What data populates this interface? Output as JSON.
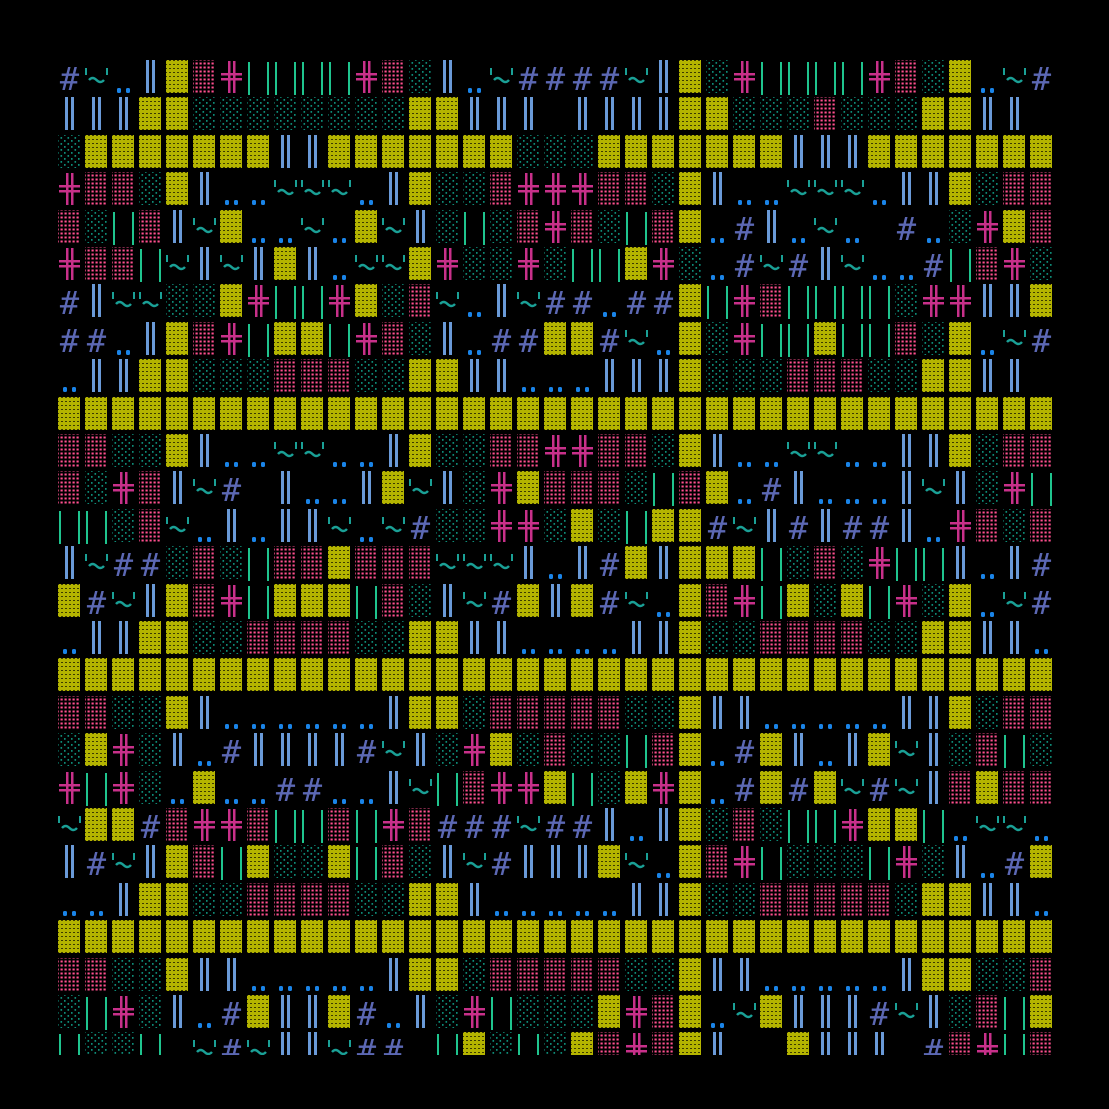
{
  "legend": {
    "Y": {
      "glyph": "yellow-dense-block",
      "color": "#b4b400"
    },
    "P": {
      "glyph": "pink-dotted-block",
      "color": "#ff4f8f"
    },
    "T": {
      "glyph": "teal-sparse-dots",
      "color": "#0e8c78"
    },
    "X": {
      "glyph": "magenta-double-cross",
      "color": "#c8308a"
    },
    "G": {
      "glyph": "green-double-bar",
      "color": "#1fc48e"
    },
    "B": {
      "glyph": "blue-double-bar",
      "color": "#6a9ad8"
    },
    "H": {
      "glyph": "hash",
      "color": "#5c68b4"
    },
    "Q": {
      "glyph": "quote-tilde-quote",
      "color": "#1aa096"
    },
    "D": {
      "glyph": "blue-dots",
      "color": "#1a84e8"
    },
    "_": {
      "glyph": "blank",
      "color": "#000000"
    }
  },
  "background": "#000000",
  "rows": [
    "HQDBYPXGGGGXPTBDQHHHHQBYTXGGGGXPTYDQH",
    "BBBYYTTTTTTTTYYBBB_BBBBYYTTTPTTTYYBB_",
    "TYYYYYYYBBYYYYYYYTTTYYYYYYYBBBYYYYYYY",
    "XPPTYBDDQQQDBYTTPXXXPPTYBDDQQQDBBYTPP",
    "PTGPBQYDDQDYQBTGTPXPTGPYDHBDQD_HDTXYP",
    "XPPGQBQBYBDQQYXTTXTGGYXTDHQHBQDDHGPXT",
    "HBQQTTYXGGXYTPQDBQHHDHHYGXPGGGGTXXBBY",
    "HHDBYPXGYYGXPTBDHHYYHQDYTXGGYGGPTYDQH",
    "DBBYYTTTPPPTTYYBBDDDBBBYTTTPPPTTYYBB_",
    "YYYYYYYYYYYYYYYYYYYYYYYYYYYYYYYYYYYYY",
    "PPTTYBDDQQDDBYTTPPXXPPTYBDDQQDDBBYTPP",
    "PTXPBQH_BDDBYQBTXYPPPTGPYDHBDDDBQBTXG",
    "GGTPQDBDBBQDQHTTXXTYTGYYHQBHBHHBDXPTP",
    "BQHHTPTGPPYPPPQQQBDBHYBYYYGTPTXGGBDBH",
    "YHQBYPXGYYYGPTBQHYBYHQDYPXGYTYGXTYDQH",
    "DBBYYTTPPPPTTYYBBDDDDBBYTTPPPPTTYYBBD",
    "YYYYYYYYYYYYYYYYYYYYYYYYYYYYYYYYYYYYY",
    "PPTTYBDDDDDDBYYTPPPPPTTYBBDDDDDBBYTPP",
    "TYXTBDHBBBBHQBTXYTPTTGPYDHYBDBYQBTPGT",
    "XGXTDYDDHHDDBQGPXXYGTYXYDHYHYQHQBPYPP",
    "QYYHPXXPGGPGXPHHHQHHBDBYTPTGGXYYGDQQD",
    "BHQBYPGYTTYGPTBQHBBBYQDYPXGTTTGXTBDHY",
    "DDBYYTTPPPPTTYYBDDDDDBBYTTPPPPPTYYBBD",
    "YYYYYYYYYYYYYYYYYYYYYYYYYYYYYYYYYYYYY",
    "PPTTYBBDDDDDBYYTPPPPPTTYBBDDDDDBYYTTP",
    "TGXTBDHYBBYHDBTXGTTTYXPYDQYBBBHQBTPGY",
    "GTTG_QHQBBQHH_GYTGTYPXPYB__YBBB_HPXGP"
  ]
}
